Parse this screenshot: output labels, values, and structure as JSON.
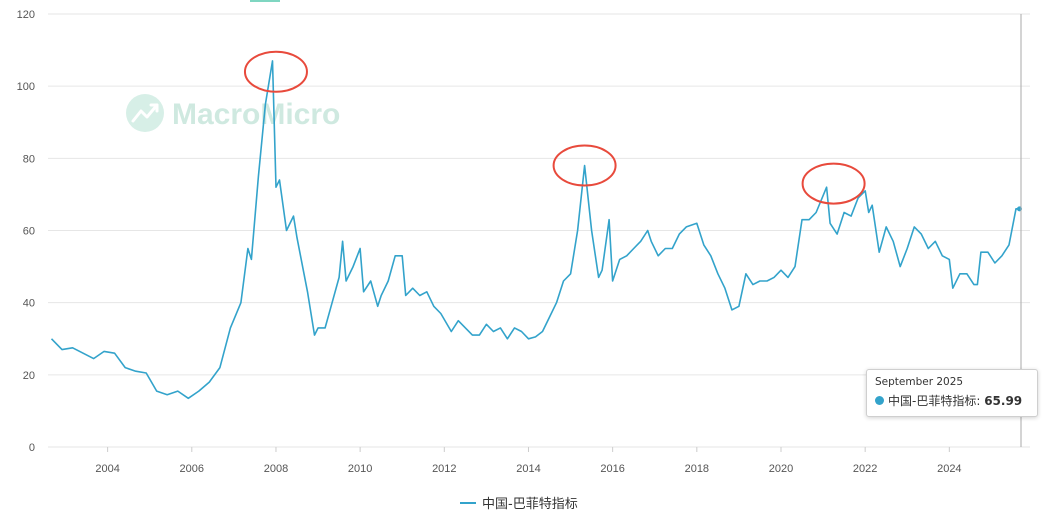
{
  "chart_data": {
    "type": "line",
    "title": "",
    "xlabel": "",
    "ylabel": "",
    "ylim": [
      0,
      120
    ],
    "xlim": [
      "2002-08",
      "2025-12"
    ],
    "y_ticks": [
      "0",
      "20",
      "40",
      "60",
      "80",
      "100",
      "120"
    ],
    "x_ticks": [
      "2004",
      "2006",
      "2008",
      "2010",
      "2012",
      "2014",
      "2016",
      "2018",
      "2020",
      "2022",
      "2024"
    ],
    "grid": true,
    "legend_position": "bottom-center",
    "series": [
      {
        "name": "中国-巴菲特指标",
        "color": "#33a3cb",
        "points": [
          [
            "2002-09",
            30
          ],
          [
            "2002-12",
            27
          ],
          [
            "2003-03",
            27.5
          ],
          [
            "2003-06",
            26
          ],
          [
            "2003-09",
            24.5
          ],
          [
            "2003-12",
            26.5
          ],
          [
            "2004-03",
            26
          ],
          [
            "2004-06",
            22
          ],
          [
            "2004-09",
            21
          ],
          [
            "2004-12",
            20.5
          ],
          [
            "2005-03",
            15.5
          ],
          [
            "2005-06",
            14.5
          ],
          [
            "2005-09",
            15.5
          ],
          [
            "2005-12",
            13.5
          ],
          [
            "2006-03",
            15.5
          ],
          [
            "2006-06",
            18
          ],
          [
            "2006-09",
            22
          ],
          [
            "2006-12",
            33
          ],
          [
            "2007-03",
            40
          ],
          [
            "2007-05",
            55
          ],
          [
            "2007-06",
            52
          ],
          [
            "2007-08",
            75
          ],
          [
            "2007-10",
            95
          ],
          [
            "2007-12",
            107
          ],
          [
            "2008-01",
            72
          ],
          [
            "2008-02",
            74
          ],
          [
            "2008-04",
            60
          ],
          [
            "2008-06",
            64
          ],
          [
            "2008-07",
            58
          ],
          [
            "2008-09",
            48
          ],
          [
            "2008-10",
            43
          ],
          [
            "2008-12",
            31
          ],
          [
            "2009-01",
            33
          ],
          [
            "2009-03",
            33
          ],
          [
            "2009-05",
            40
          ],
          [
            "2009-07",
            47
          ],
          [
            "2009-08",
            57
          ],
          [
            "2009-09",
            46
          ],
          [
            "2009-11",
            50
          ],
          [
            "2010-01",
            55
          ],
          [
            "2010-02",
            43
          ],
          [
            "2010-04",
            46
          ],
          [
            "2010-06",
            39
          ],
          [
            "2010-07",
            42
          ],
          [
            "2010-09",
            46
          ],
          [
            "2010-11",
            53
          ],
          [
            "2011-01",
            53
          ],
          [
            "2011-02",
            42
          ],
          [
            "2011-04",
            44
          ],
          [
            "2011-06",
            42
          ],
          [
            "2011-08",
            43
          ],
          [
            "2011-10",
            39
          ],
          [
            "2011-12",
            37
          ],
          [
            "2012-03",
            32
          ],
          [
            "2012-05",
            35
          ],
          [
            "2012-07",
            33
          ],
          [
            "2012-09",
            31
          ],
          [
            "2012-11",
            31
          ],
          [
            "2013-01",
            34
          ],
          [
            "2013-03",
            32
          ],
          [
            "2013-05",
            33
          ],
          [
            "2013-07",
            30
          ],
          [
            "2013-09",
            33
          ],
          [
            "2013-11",
            32
          ],
          [
            "2014-01",
            30
          ],
          [
            "2014-03",
            30.5
          ],
          [
            "2014-05",
            32
          ],
          [
            "2014-07",
            36
          ],
          [
            "2014-09",
            40
          ],
          [
            "2014-11",
            46
          ],
          [
            "2015-01",
            48
          ],
          [
            "2015-03",
            60
          ],
          [
            "2015-05",
            78
          ],
          [
            "2015-07",
            60
          ],
          [
            "2015-09",
            47
          ],
          [
            "2015-10",
            49
          ],
          [
            "2015-12",
            63
          ],
          [
            "2016-01",
            46
          ],
          [
            "2016-03",
            52
          ],
          [
            "2016-05",
            53
          ],
          [
            "2016-07",
            55
          ],
          [
            "2016-09",
            57
          ],
          [
            "2016-11",
            60
          ],
          [
            "2016-12",
            57
          ],
          [
            "2017-02",
            53
          ],
          [
            "2017-04",
            55
          ],
          [
            "2017-06",
            55
          ],
          [
            "2017-08",
            59
          ],
          [
            "2017-10",
            61
          ],
          [
            "2018-01",
            62
          ],
          [
            "2018-03",
            56
          ],
          [
            "2018-05",
            53
          ],
          [
            "2018-07",
            48
          ],
          [
            "2018-09",
            44
          ],
          [
            "2018-11",
            38
          ],
          [
            "2019-01",
            39
          ],
          [
            "2019-03",
            48
          ],
          [
            "2019-05",
            45
          ],
          [
            "2019-07",
            46
          ],
          [
            "2019-09",
            46
          ],
          [
            "2019-11",
            47
          ],
          [
            "2020-01",
            49
          ],
          [
            "2020-03",
            47
          ],
          [
            "2020-05",
            50
          ],
          [
            "2020-07",
            63
          ],
          [
            "2020-09",
            63
          ],
          [
            "2020-11",
            65
          ],
          [
            "2021-02",
            72
          ],
          [
            "2021-03",
            62
          ],
          [
            "2021-05",
            59
          ],
          [
            "2021-07",
            65
          ],
          [
            "2021-09",
            64
          ],
          [
            "2021-11",
            69
          ],
          [
            "2022-01",
            71
          ],
          [
            "2022-02",
            65
          ],
          [
            "2022-03",
            67
          ],
          [
            "2022-05",
            54
          ],
          [
            "2022-07",
            61
          ],
          [
            "2022-09",
            57
          ],
          [
            "2022-11",
            50
          ],
          [
            "2023-01",
            55
          ],
          [
            "2023-03",
            61
          ],
          [
            "2023-05",
            59
          ],
          [
            "2023-07",
            55
          ],
          [
            "2023-09",
            57
          ],
          [
            "2023-11",
            53
          ],
          [
            "2024-01",
            52
          ],
          [
            "2024-02",
            44
          ],
          [
            "2024-04",
            48
          ],
          [
            "2024-06",
            48
          ],
          [
            "2024-08",
            45
          ],
          [
            "2024-09",
            45
          ],
          [
            "2024-10",
            54
          ],
          [
            "2024-12",
            54
          ],
          [
            "2025-02",
            51
          ],
          [
            "2025-04",
            53
          ],
          [
            "2025-06",
            56
          ],
          [
            "2025-08",
            66
          ],
          [
            "2025-09",
            65.99
          ]
        ]
      }
    ],
    "annotations": [
      {
        "type": "circle",
        "color": "#e84a3c",
        "x": "2008-01",
        "y": 104
      },
      {
        "type": "circle",
        "color": "#e84a3c",
        "x": "2015-05",
        "y": 78
      },
      {
        "type": "circle",
        "color": "#e84a3c",
        "x": "2021-04",
        "y": 73
      }
    ]
  },
  "watermark": {
    "text": "MacroMicro",
    "icon": "macromicro-logo-icon"
  },
  "tooltip": {
    "date": "September 2025",
    "label": "中国-巴菲特指标:",
    "value": "65.99"
  },
  "legend": {
    "label": "中国-巴菲特指标"
  }
}
